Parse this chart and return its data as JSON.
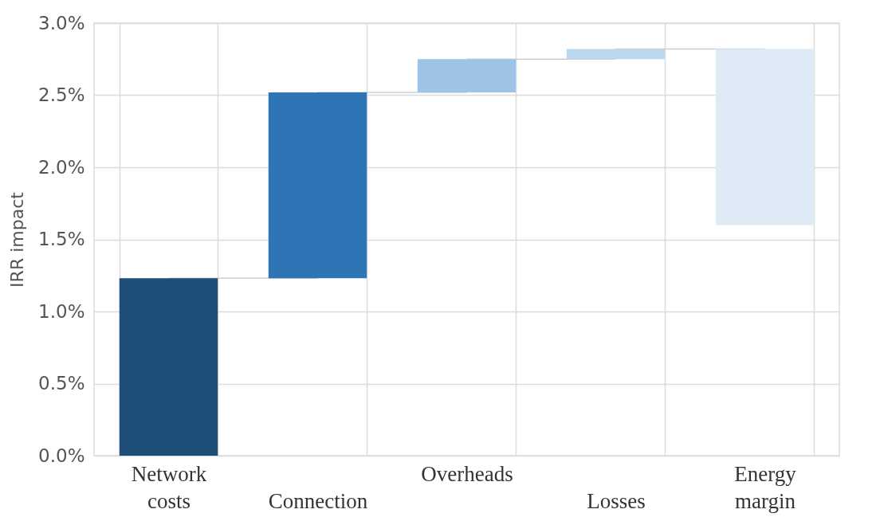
{
  "chart_data": {
    "type": "bar",
    "ylabel": "IRR impact",
    "categories": [
      "Network costs",
      "Connection",
      "Overheads",
      "Losses",
      "Energy margin"
    ],
    "values": [
      1.23,
      1.29,
      0.23,
      0.07,
      -1.22
    ],
    "base": [
      0,
      1.23,
      2.52,
      2.75,
      2.82
    ],
    "colors": [
      "#1f4e79",
      "#2e75b6",
      "#9dc3e6",
      "#bdd7ee",
      "#deeaf6"
    ],
    "ylim": [
      0,
      3
    ],
    "yticks": [
      {
        "value": 0,
        "label": "0.0%"
      },
      {
        "value": 0.5,
        "label": "0.5%"
      },
      {
        "value": 1,
        "label": "1.0%"
      },
      {
        "value": 1.5,
        "label": "1.5%"
      },
      {
        "value": 2,
        "label": "2.0%"
      },
      {
        "value": 2.5,
        "label": "2.5%"
      },
      {
        "value": 3,
        "label": "3.0%"
      }
    ],
    "grid": true
  }
}
